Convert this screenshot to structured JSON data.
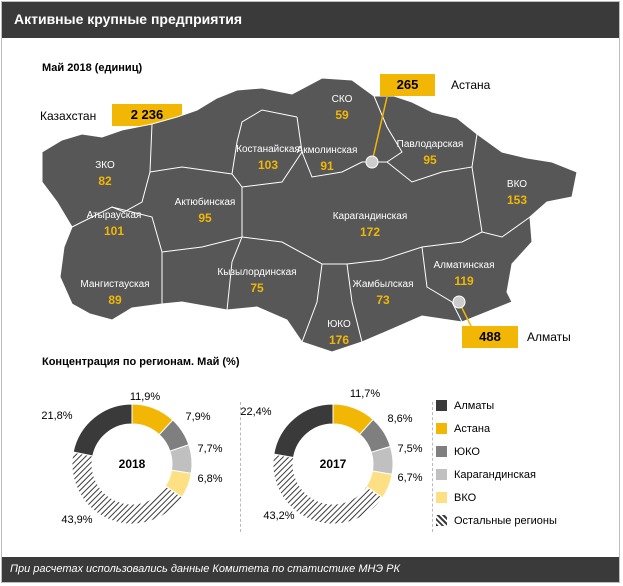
{
  "header": {
    "title": "Активные крупные предприятия"
  },
  "map": {
    "subtitle": "Май 2018 (единиц)",
    "total_label": "Казахстан",
    "total_value": "2 236",
    "astana": {
      "name": "Астана",
      "value": "265"
    },
    "almaty": {
      "name": "Алматы",
      "value": "488"
    },
    "regions": [
      {
        "id": "zko",
        "name": "ЗКО",
        "value": "82"
      },
      {
        "id": "atyrau",
        "name": "Атырауская",
        "value": "101"
      },
      {
        "id": "mangystau",
        "name": "Мангистауская",
        "value": "89"
      },
      {
        "id": "aktobe",
        "name": "Актюбинская",
        "value": "95"
      },
      {
        "id": "kostanay",
        "name": "Костанайская",
        "value": "103"
      },
      {
        "id": "sko",
        "name": "СКО",
        "value": "59"
      },
      {
        "id": "akmola",
        "name": "Акмолинская",
        "value": "91"
      },
      {
        "id": "pavlodar",
        "name": "Павлодарская",
        "value": "95"
      },
      {
        "id": "vko",
        "name": "ВКО",
        "value": "153"
      },
      {
        "id": "karaganda",
        "name": "Карагандинская",
        "value": "172"
      },
      {
        "id": "kyzylorda",
        "name": "Кызылординская",
        "value": "75"
      },
      {
        "id": "zhambyl",
        "name": "Жамбылская",
        "value": "73"
      },
      {
        "id": "almaty-obl",
        "name": "Алматинская",
        "value": "119"
      },
      {
        "id": "yuko",
        "name": "ЮКО",
        "value": "176"
      }
    ]
  },
  "chart_data": [
    {
      "type": "pie",
      "donut": true,
      "title": "Концентрация по регионам. Май (%)",
      "center_label": "2018",
      "categories": [
        "Алматы",
        "Астана",
        "ЮКО",
        "Карагандинская",
        "ВКО",
        "Остальные регионы"
      ],
      "values": [
        21.8,
        11.9,
        7.9,
        7.7,
        6.8,
        43.9
      ],
      "labels": [
        "21,8%",
        "11,9%",
        "7,9%",
        "7,7%",
        "6,8%",
        "43,9%"
      ]
    },
    {
      "type": "pie",
      "donut": true,
      "center_label": "2017",
      "categories": [
        "Алматы",
        "Астана",
        "ЮКО",
        "Карагандинская",
        "ВКО",
        "Остальные регионы"
      ],
      "values": [
        22.4,
        11.7,
        8.6,
        7.5,
        6.7,
        43.2
      ],
      "labels": [
        "22,4%",
        "11,7%",
        "8,6%",
        "7,5%",
        "6,7%",
        "43,2%"
      ]
    }
  ],
  "legend": [
    {
      "name": "Алматы",
      "color": "#3a3a3a"
    },
    {
      "name": "Астана",
      "color": "#f2b705"
    },
    {
      "name": "ЮКО",
      "color": "#7f7f7f"
    },
    {
      "name": "Карагандинская",
      "color": "#c0c0c0"
    },
    {
      "name": "ВКО",
      "color": "#fde083"
    },
    {
      "name": "Остальные регионы",
      "color": "hatch"
    }
  ],
  "footer": {
    "text": "При расчетах использовались данные  Комитета по статистике МНЭ РК"
  }
}
